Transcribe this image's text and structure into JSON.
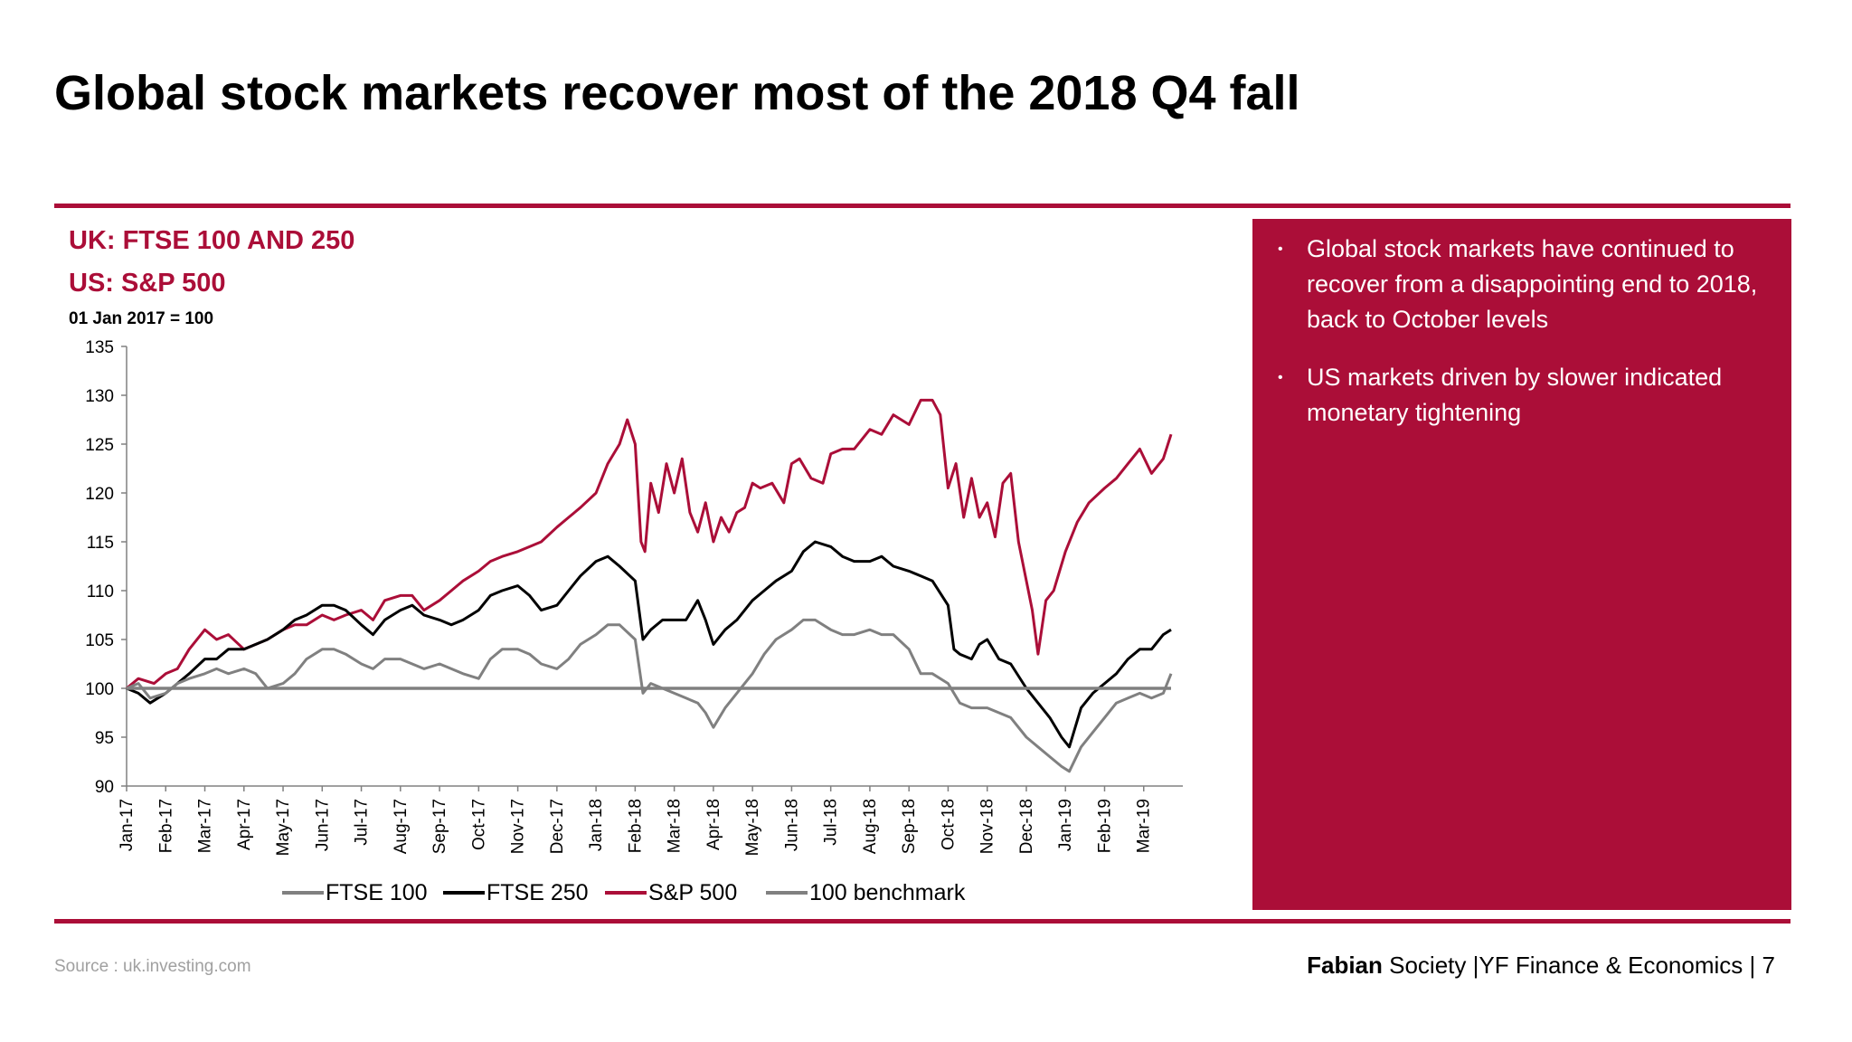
{
  "slide": {
    "title": "Global stock markets recover most of the 2018 Q4 fall",
    "source": "Source : uk.investing.com",
    "footer": {
      "brand": "Fabian",
      "society": " Society",
      "dept": "|YF Finance & Economics",
      "sep": "|",
      "page": "7"
    }
  },
  "chart_header": {
    "line1": "UK: FTSE 100 AND 250",
    "line2": "US: S&P 500",
    "index_note": "01 Jan 2017 = 100"
  },
  "commentary": {
    "bullet_glyph": "•",
    "bullets": [
      "Global stock markets have continued to recover from a disappointing end to 2018, back to October levels",
      "US markets driven by slower indicated monetary tightening"
    ]
  },
  "colors": {
    "accent": "#ab0e38",
    "ftse100": "#808080",
    "ftse250": "#000000",
    "sp500": "#ab0e38",
    "benchmark": "#808080",
    "axis": "#808080"
  },
  "chart_data": {
    "type": "line",
    "title": "",
    "xlabel": "",
    "ylabel": "01 Jan 2017 = 100",
    "ylim": [
      90,
      135
    ],
    "yticks": [
      90,
      95,
      100,
      105,
      110,
      115,
      120,
      125,
      130,
      135
    ],
    "xlim": [
      0,
      27
    ],
    "x_note": "x = months since Jan-17",
    "categories": [
      "Jan-17",
      "Feb-17",
      "Mar-17",
      "Apr-17",
      "May-17",
      "Jun-17",
      "Jul-17",
      "Aug-17",
      "Sep-17",
      "Oct-17",
      "Nov-17",
      "Dec-17",
      "Jan-18",
      "Feb-18",
      "Mar-18",
      "Apr-18",
      "May-18",
      "Jun-18",
      "Jul-18",
      "Aug-18",
      "Sep-18",
      "Oct-18",
      "Nov-18",
      "Dec-18",
      "Jan-19",
      "Feb-19",
      "Mar-19"
    ],
    "legend": [
      "FTSE 100",
      "FTSE 250",
      "S&P 500",
      "100 benchmark"
    ],
    "legend_position": "bottom",
    "series": [
      {
        "name": "S&P 500",
        "color": "#ab0e38",
        "points": [
          [
            0,
            100
          ],
          [
            0.3,
            101
          ],
          [
            0.7,
            100.5
          ],
          [
            1,
            101.5
          ],
          [
            1.3,
            102
          ],
          [
            1.6,
            104
          ],
          [
            2,
            106
          ],
          [
            2.3,
            105
          ],
          [
            2.6,
            105.5
          ],
          [
            3,
            104
          ],
          [
            3.3,
            104.5
          ],
          [
            3.6,
            105
          ],
          [
            4,
            106
          ],
          [
            4.3,
            106.5
          ],
          [
            4.6,
            106.5
          ],
          [
            5,
            107.5
          ],
          [
            5.3,
            107
          ],
          [
            5.6,
            107.5
          ],
          [
            6,
            108
          ],
          [
            6.3,
            107
          ],
          [
            6.6,
            109
          ],
          [
            7,
            109.5
          ],
          [
            7.3,
            109.5
          ],
          [
            7.6,
            108
          ],
          [
            8,
            109
          ],
          [
            8.3,
            110
          ],
          [
            8.6,
            111
          ],
          [
            9,
            112
          ],
          [
            9.3,
            113
          ],
          [
            9.6,
            113.5
          ],
          [
            10,
            114
          ],
          [
            10.3,
            114.5
          ],
          [
            10.6,
            115
          ],
          [
            11,
            116.5
          ],
          [
            11.3,
            117.5
          ],
          [
            11.6,
            118.5
          ],
          [
            12,
            120
          ],
          [
            12.3,
            123
          ],
          [
            12.6,
            125
          ],
          [
            12.8,
            127.5
          ],
          [
            13,
            125
          ],
          [
            13.15,
            115
          ],
          [
            13.25,
            114
          ],
          [
            13.4,
            121
          ],
          [
            13.6,
            118
          ],
          [
            13.8,
            123
          ],
          [
            14,
            120
          ],
          [
            14.2,
            123.5
          ],
          [
            14.4,
            118
          ],
          [
            14.6,
            116
          ],
          [
            14.8,
            119
          ],
          [
            15,
            115
          ],
          [
            15.2,
            117.5
          ],
          [
            15.4,
            116
          ],
          [
            15.6,
            118
          ],
          [
            15.8,
            118.5
          ],
          [
            16,
            121
          ],
          [
            16.2,
            120.5
          ],
          [
            16.5,
            121
          ],
          [
            16.8,
            119
          ],
          [
            17,
            123
          ],
          [
            17.2,
            123.5
          ],
          [
            17.5,
            121.5
          ],
          [
            17.8,
            121
          ],
          [
            18,
            124
          ],
          [
            18.3,
            124.5
          ],
          [
            18.6,
            124.5
          ],
          [
            19,
            126.5
          ],
          [
            19.3,
            126
          ],
          [
            19.6,
            128
          ],
          [
            20,
            127
          ],
          [
            20.3,
            129.5
          ],
          [
            20.6,
            129.5
          ],
          [
            20.8,
            128
          ],
          [
            21,
            120.5
          ],
          [
            21.2,
            123
          ],
          [
            21.4,
            117.5
          ],
          [
            21.6,
            121.5
          ],
          [
            21.8,
            117.5
          ],
          [
            22,
            119
          ],
          [
            22.2,
            115.5
          ],
          [
            22.4,
            121
          ],
          [
            22.6,
            122
          ],
          [
            22.8,
            115
          ],
          [
            23,
            111
          ],
          [
            23.15,
            108
          ],
          [
            23.3,
            103.5
          ],
          [
            23.5,
            109
          ],
          [
            23.7,
            110
          ],
          [
            24,
            114
          ],
          [
            24.3,
            117
          ],
          [
            24.6,
            119
          ],
          [
            25,
            120.5
          ],
          [
            25.3,
            121.5
          ],
          [
            25.6,
            123
          ],
          [
            25.9,
            124.5
          ],
          [
            26.2,
            122
          ],
          [
            26.5,
            123.5
          ],
          [
            26.7,
            126
          ]
        ]
      },
      {
        "name": "FTSE 250",
        "color": "#000000",
        "points": [
          [
            0,
            100
          ],
          [
            0.3,
            99.5
          ],
          [
            0.6,
            98.5
          ],
          [
            1,
            99.5
          ],
          [
            1.3,
            100.5
          ],
          [
            1.6,
            101.5
          ],
          [
            2,
            103
          ],
          [
            2.3,
            103
          ],
          [
            2.6,
            104
          ],
          [
            3,
            104
          ],
          [
            3.3,
            104.5
          ],
          [
            3.6,
            105
          ],
          [
            4,
            106
          ],
          [
            4.3,
            107
          ],
          [
            4.6,
            107.5
          ],
          [
            5,
            108.5
          ],
          [
            5.3,
            108.5
          ],
          [
            5.6,
            108
          ],
          [
            6,
            106.5
          ],
          [
            6.3,
            105.5
          ],
          [
            6.6,
            107
          ],
          [
            7,
            108
          ],
          [
            7.3,
            108.5
          ],
          [
            7.6,
            107.5
          ],
          [
            8,
            107
          ],
          [
            8.3,
            106.5
          ],
          [
            8.6,
            107
          ],
          [
            9,
            108
          ],
          [
            9.3,
            109.5
          ],
          [
            9.6,
            110
          ],
          [
            10,
            110.5
          ],
          [
            10.3,
            109.5
          ],
          [
            10.6,
            108
          ],
          [
            11,
            108.5
          ],
          [
            11.3,
            110
          ],
          [
            11.6,
            111.5
          ],
          [
            12,
            113
          ],
          [
            12.3,
            113.5
          ],
          [
            12.6,
            112.5
          ],
          [
            13,
            111
          ],
          [
            13.2,
            105
          ],
          [
            13.4,
            106
          ],
          [
            13.7,
            107
          ],
          [
            14,
            107
          ],
          [
            14.3,
            107
          ],
          [
            14.6,
            109
          ],
          [
            14.8,
            107
          ],
          [
            15,
            104.5
          ],
          [
            15.3,
            106
          ],
          [
            15.6,
            107
          ],
          [
            16,
            109
          ],
          [
            16.3,
            110
          ],
          [
            16.6,
            111
          ],
          [
            17,
            112
          ],
          [
            17.3,
            114
          ],
          [
            17.6,
            115
          ],
          [
            18,
            114.5
          ],
          [
            18.3,
            113.5
          ],
          [
            18.6,
            113
          ],
          [
            19,
            113
          ],
          [
            19.3,
            113.5
          ],
          [
            19.6,
            112.5
          ],
          [
            20,
            112
          ],
          [
            20.3,
            111.5
          ],
          [
            20.6,
            111
          ],
          [
            21,
            108.5
          ],
          [
            21.15,
            104
          ],
          [
            21.3,
            103.5
          ],
          [
            21.6,
            103
          ],
          [
            21.8,
            104.5
          ],
          [
            22,
            105
          ],
          [
            22.3,
            103
          ],
          [
            22.6,
            102.5
          ],
          [
            23,
            100
          ],
          [
            23.3,
            98.5
          ],
          [
            23.6,
            97
          ],
          [
            23.9,
            95
          ],
          [
            24.1,
            94
          ],
          [
            24.4,
            98
          ],
          [
            24.7,
            99.5
          ],
          [
            25,
            100.5
          ],
          [
            25.3,
            101.5
          ],
          [
            25.6,
            103
          ],
          [
            25.9,
            104
          ],
          [
            26.2,
            104
          ],
          [
            26.5,
            105.5
          ],
          [
            26.7,
            106
          ]
        ]
      },
      {
        "name": "FTSE 100",
        "color": "#808080",
        "points": [
          [
            0,
            100
          ],
          [
            0.3,
            100.5
          ],
          [
            0.6,
            99
          ],
          [
            1,
            99.5
          ],
          [
            1.3,
            100.5
          ],
          [
            1.6,
            101
          ],
          [
            2,
            101.5
          ],
          [
            2.3,
            102
          ],
          [
            2.6,
            101.5
          ],
          [
            3,
            102
          ],
          [
            3.3,
            101.5
          ],
          [
            3.6,
            100
          ],
          [
            4,
            100.5
          ],
          [
            4.3,
            101.5
          ],
          [
            4.6,
            103
          ],
          [
            5,
            104
          ],
          [
            5.3,
            104
          ],
          [
            5.6,
            103.5
          ],
          [
            6,
            102.5
          ],
          [
            6.3,
            102
          ],
          [
            6.6,
            103
          ],
          [
            7,
            103
          ],
          [
            7.3,
            102.5
          ],
          [
            7.6,
            102
          ],
          [
            8,
            102.5
          ],
          [
            8.3,
            102
          ],
          [
            8.6,
            101.5
          ],
          [
            9,
            101
          ],
          [
            9.3,
            103
          ],
          [
            9.6,
            104
          ],
          [
            10,
            104
          ],
          [
            10.3,
            103.5
          ],
          [
            10.6,
            102.5
          ],
          [
            11,
            102
          ],
          [
            11.3,
            103
          ],
          [
            11.6,
            104.5
          ],
          [
            12,
            105.5
          ],
          [
            12.3,
            106.5
          ],
          [
            12.6,
            106.5
          ],
          [
            13,
            105
          ],
          [
            13.2,
            99.5
          ],
          [
            13.4,
            100.5
          ],
          [
            13.7,
            100
          ],
          [
            14,
            99.5
          ],
          [
            14.3,
            99
          ],
          [
            14.6,
            98.5
          ],
          [
            14.8,
            97.5
          ],
          [
            15,
            96
          ],
          [
            15.3,
            98
          ],
          [
            15.6,
            99.5
          ],
          [
            16,
            101.5
          ],
          [
            16.3,
            103.5
          ],
          [
            16.6,
            105
          ],
          [
            17,
            106
          ],
          [
            17.3,
            107
          ],
          [
            17.6,
            107
          ],
          [
            18,
            106
          ],
          [
            18.3,
            105.5
          ],
          [
            18.6,
            105.5
          ],
          [
            19,
            106
          ],
          [
            19.3,
            105.5
          ],
          [
            19.6,
            105.5
          ],
          [
            20,
            104
          ],
          [
            20.3,
            101.5
          ],
          [
            20.6,
            101.5
          ],
          [
            21,
            100.5
          ],
          [
            21.3,
            98.5
          ],
          [
            21.6,
            98
          ],
          [
            22,
            98
          ],
          [
            22.3,
            97.5
          ],
          [
            22.6,
            97
          ],
          [
            23,
            95
          ],
          [
            23.3,
            94
          ],
          [
            23.6,
            93
          ],
          [
            23.9,
            92
          ],
          [
            24.1,
            91.5
          ],
          [
            24.4,
            94
          ],
          [
            24.7,
            95.5
          ],
          [
            25,
            97
          ],
          [
            25.3,
            98.5
          ],
          [
            25.6,
            99
          ],
          [
            25.9,
            99.5
          ],
          [
            26.2,
            99
          ],
          [
            26.5,
            99.5
          ],
          [
            26.7,
            101.5
          ]
        ]
      },
      {
        "name": "100 benchmark",
        "color": "#808080",
        "points": [
          [
            0,
            100
          ],
          [
            26.7,
            100
          ]
        ]
      }
    ]
  }
}
